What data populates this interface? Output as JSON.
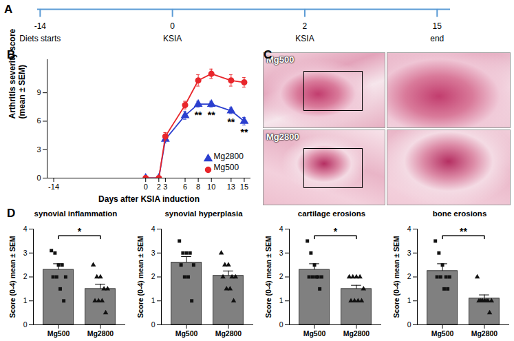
{
  "chart_data": [
    {
      "panel": "A",
      "type": "timeline",
      "x": [
        -14,
        0,
        2,
        15
      ],
      "labels": [
        "Diets starts",
        "KSIA",
        "KSIA",
        "end"
      ],
      "color": "#5b9bd5"
    },
    {
      "panel": "B",
      "type": "line",
      "xlabel": "Days after KSIA induction",
      "ylabel": "Arthritis severity score\n(mean ± SEM)",
      "x": [
        0,
        2,
        3,
        6,
        8,
        10,
        13,
        15
      ],
      "series": [
        {
          "name": "Mg2800",
          "color": "#2b3fcf",
          "marker": "triangle",
          "values": [
            0,
            0,
            4.1,
            6.6,
            7.8,
            7.8,
            7.1,
            6.0
          ],
          "errors": [
            0,
            0,
            0.4,
            0.4,
            0.3,
            0.3,
            0.3,
            0.4
          ]
        },
        {
          "name": "Mg500",
          "color": "#e8262b",
          "marker": "circle",
          "values": [
            0,
            0,
            4.4,
            7.7,
            10.3,
            11.0,
            10.3,
            10.1
          ],
          "errors": [
            0,
            0,
            0.4,
            0.4,
            0.6,
            0.5,
            0.6,
            0.5
          ]
        }
      ],
      "xlim": [
        -15,
        16
      ],
      "xticks": [
        -14,
        0,
        2,
        3,
        6,
        8,
        10,
        13,
        15
      ],
      "ylim": [
        0,
        12.5
      ],
      "yticks": [
        0,
        3,
        6,
        9
      ],
      "legend": "lower right",
      "annotations": [
        {
          "x": 8,
          "y": 6.6,
          "text": "**"
        },
        {
          "x": 10,
          "y": 6.6,
          "text": "**"
        },
        {
          "x": 13,
          "y": 5.9,
          "text": "**"
        },
        {
          "x": 15,
          "y": 4.8,
          "text": "**"
        }
      ]
    },
    {
      "panel": "C",
      "type": "image",
      "images": [
        {
          "label": "Mg500"
        },
        {
          "label": "Mg2800"
        }
      ]
    },
    {
      "panel": "D",
      "type": "bar",
      "title": "synovial inflammation",
      "ylabel": "Score (0-4) mean ± SEM",
      "categories": [
        "Mg500",
        "Mg2800"
      ],
      "values": [
        2.3,
        1.5
      ],
      "errors": [
        0.25,
        0.2
      ],
      "points": [
        [
          3.1,
          3.0,
          2.5,
          2.5,
          2.0,
          2.0,
          2.0,
          1.5,
          1.0
        ],
        [
          2.5,
          2.0,
          2.0,
          1.5,
          1.5,
          1.0,
          1.0,
          1.0,
          0.5
        ]
      ],
      "markers": [
        "square",
        "triangle"
      ],
      "color": "#808080",
      "ylim": [
        0,
        4
      ],
      "yticks": [
        0,
        1,
        2,
        3,
        4
      ],
      "annotation": "*"
    },
    {
      "type": "bar",
      "title": "synovial hyperplasia",
      "ylabel": "Score (0-4) mean ± SEM",
      "categories": [
        "Mg500",
        "Mg2800"
      ],
      "values": [
        2.6,
        2.05
      ],
      "errors": [
        0.25,
        0.2
      ],
      "points": [
        [
          3.5,
          3.0,
          3.0,
          3.0,
          2.5,
          2.5,
          2.0,
          2.0,
          1.0
        ],
        [
          3.0,
          2.5,
          2.5,
          2.0,
          2.0,
          2.0,
          1.5,
          1.5,
          1.0
        ]
      ],
      "markers": [
        "square",
        "triangle"
      ],
      "color": "#808080",
      "ylim": [
        0,
        4
      ],
      "yticks": [
        0,
        1,
        2,
        3,
        4
      ]
    },
    {
      "type": "bar",
      "title": "cartilage erosions",
      "ylabel": "Score (0-4) mean ± SEM",
      "categories": [
        "Mg500",
        "Mg2800"
      ],
      "values": [
        2.3,
        1.5
      ],
      "errors": [
        0.25,
        0.15
      ],
      "points": [
        [
          3.5,
          3.0,
          2.5,
          2.0,
          2.0,
          2.0,
          2.0,
          2.0,
          1.5
        ],
        [
          2.0,
          2.0,
          2.0,
          2.0,
          1.5,
          1.0,
          1.0,
          1.0,
          1.0
        ]
      ],
      "markers": [
        "square",
        "triangle"
      ],
      "color": "#808080",
      "ylim": [
        0,
        4
      ],
      "yticks": [
        0,
        1,
        2,
        3,
        4
      ],
      "annotation": "*"
    },
    {
      "type": "bar",
      "title": "bone erosions",
      "ylabel": "Score (0-4) mean ± SEM",
      "categories": [
        "Mg500",
        "Mg2800"
      ],
      "values": [
        2.25,
        1.1
      ],
      "errors": [
        0.3,
        0.15
      ],
      "points": [
        [
          3.5,
          3.0,
          2.5,
          2.0,
          2.0,
          2.0,
          2.0,
          1.5,
          1.5
        ],
        [
          2.0,
          1.0,
          1.0,
          1.0,
          1.0,
          1.0,
          1.0,
          1.0,
          0.5
        ]
      ],
      "markers": [
        "square",
        "triangle"
      ],
      "color": "#808080",
      "ylim": [
        0,
        4
      ],
      "yticks": [
        0,
        1,
        2,
        3,
        4
      ],
      "annotation": "**"
    }
  ]
}
